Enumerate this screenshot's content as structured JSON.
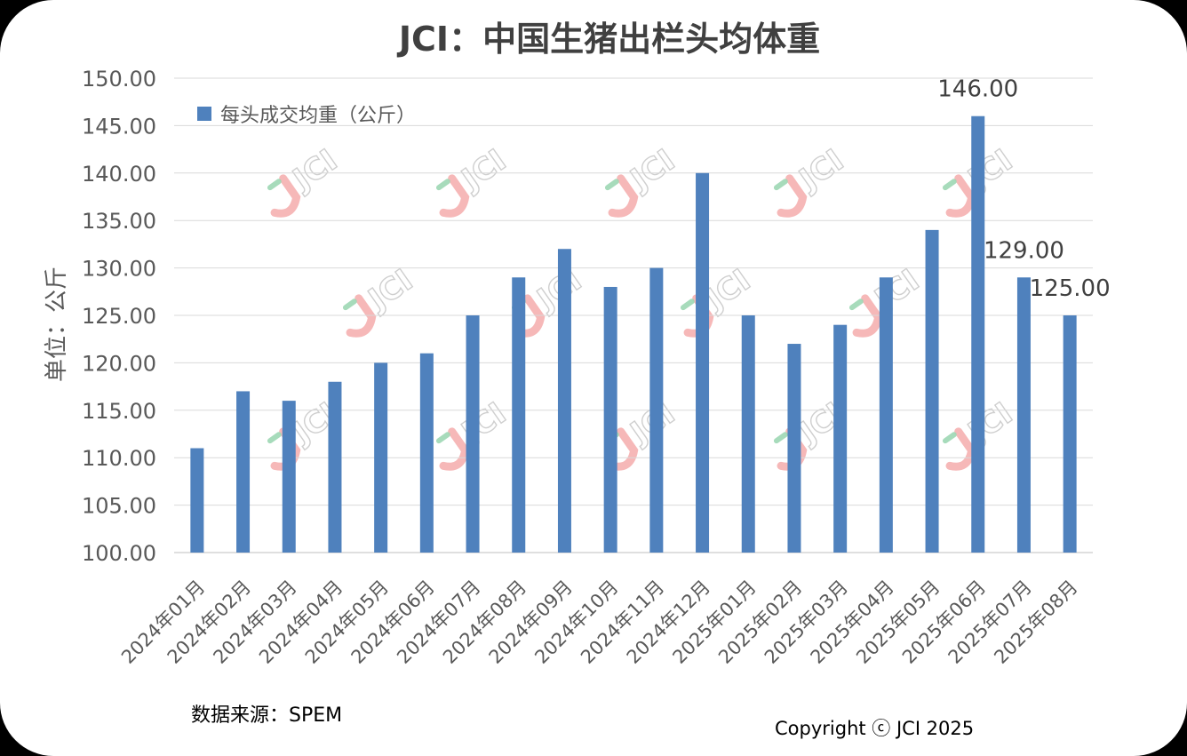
{
  "chart_data": {
    "type": "bar",
    "title": "JCI：中国生猪出栏头均体重",
    "ylabel": "单位：公斤",
    "xlabel": "",
    "ylim": [
      100,
      150
    ],
    "yticks": [
      "100.00",
      "105.00",
      "110.00",
      "115.00",
      "120.00",
      "125.00",
      "130.00",
      "135.00",
      "140.00",
      "145.00",
      "150.00"
    ],
    "grid": true,
    "legend_position": "top-left",
    "categories": [
      "2024年01月",
      "2024年02月",
      "2024年03月",
      "2024年04月",
      "2024年05月",
      "2024年06月",
      "2024年07月",
      "2024年08月",
      "2024年09月",
      "2024年10月",
      "2024年11月",
      "2024年12月",
      "2025年01月",
      "2025年02月",
      "2025年03月",
      "2025年04月",
      "2025年05月",
      "2025年06月",
      "2025年07月",
      "2025年08月"
    ],
    "series": [
      {
        "name": "每头成交均重（公斤）",
        "color": "#4f81bd",
        "values": [
          111,
          117,
          116,
          118,
          120,
          121,
          125,
          129,
          132,
          128,
          130,
          140,
          125,
          122,
          124,
          129,
          134,
          146,
          129,
          125
        ]
      }
    ],
    "data_labels": [
      {
        "category": "2025年06月",
        "text": "146.00"
      },
      {
        "category": "2025年07月",
        "text": "129.00"
      },
      {
        "category": "2025年08月",
        "text": "125.00"
      }
    ]
  },
  "footer": {
    "source": "数据来源：SPEM",
    "copyright": "Copyright ⓒ JCI  2025"
  },
  "watermark": {
    "text": "JCI",
    "mark_color": "#f4a6a6",
    "accent_color": "#9ed8b4"
  }
}
